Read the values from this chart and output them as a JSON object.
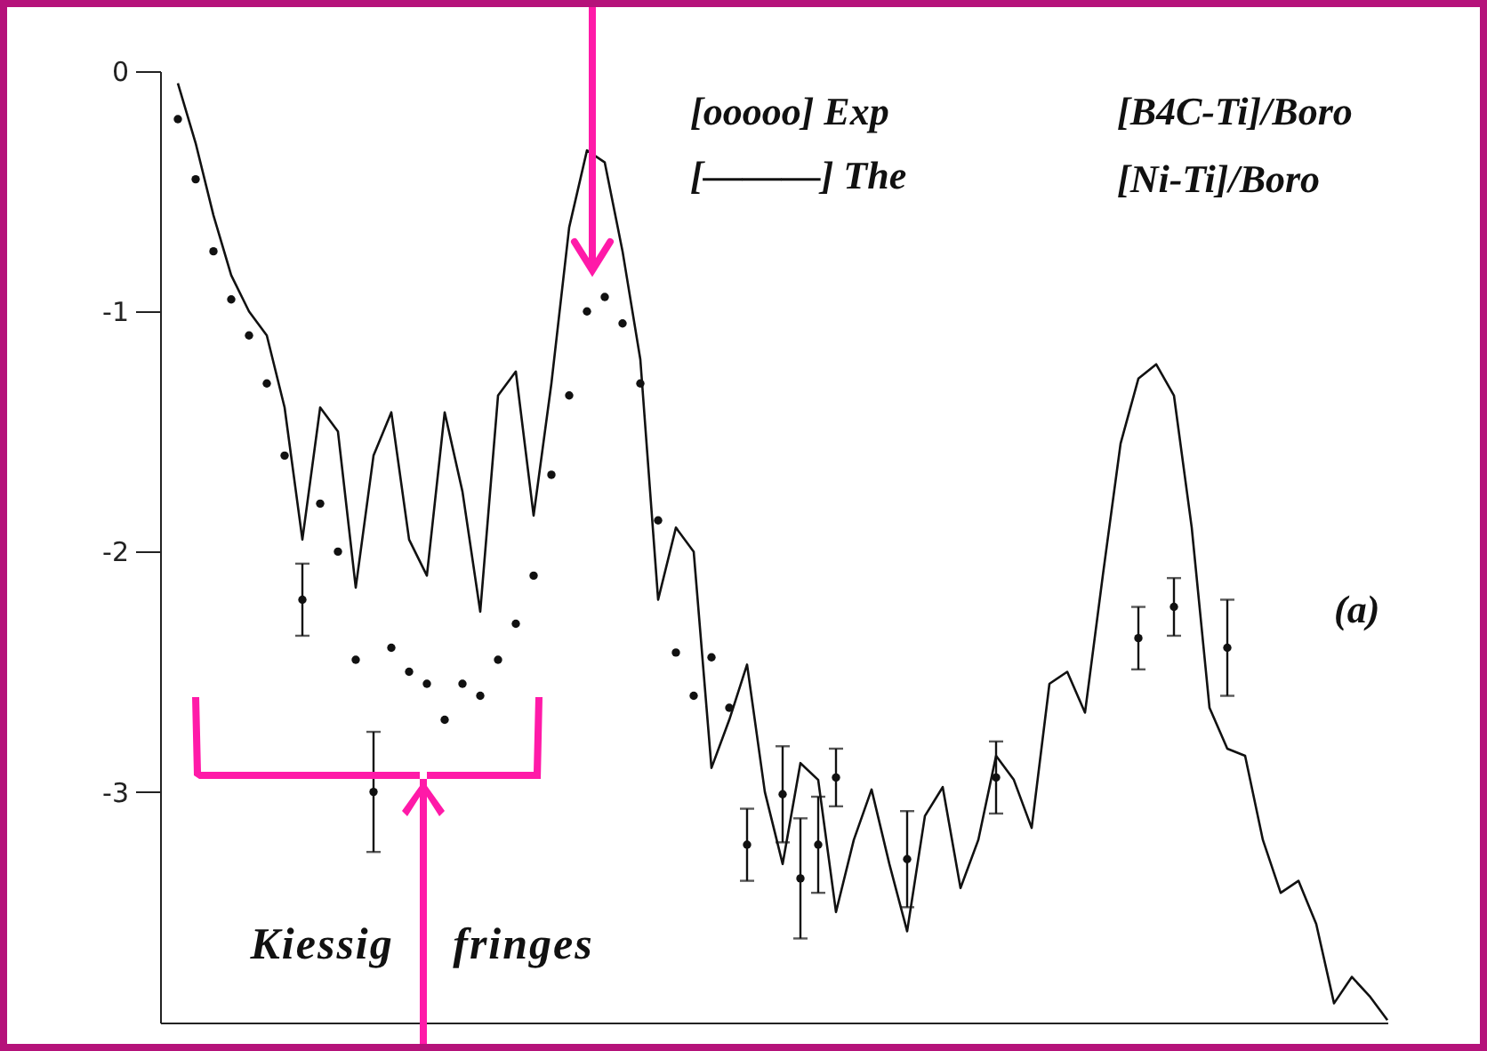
{
  "chart_data": {
    "type": "scatter",
    "categories": [
      null,
      null,
      null,
      null,
      null,
      null,
      null,
      null,
      null,
      null,
      null,
      null,
      null,
      null,
      null,
      null,
      null,
      null,
      null,
      null,
      null,
      null,
      null,
      null,
      null,
      null,
      null,
      null,
      null,
      null,
      null,
      null,
      null,
      null,
      null,
      null,
      null,
      null,
      null,
      null,
      null,
      null,
      null,
      null,
      null,
      null,
      null,
      null,
      null,
      null,
      null,
      null,
      null,
      null,
      null,
      null,
      null,
      null,
      null,
      null,
      null,
      null,
      null,
      null,
      null,
      null,
      null,
      null,
      null,
      null
    ],
    "series": [
      {
        "type": "line",
        "color": "#111111",
        "marker": "none",
        "values": [
          null,
          -0.05,
          -0.3,
          -0.6,
          -0.85,
          -1.0,
          -1.1,
          -1.4,
          -1.95,
          -1.4,
          -1.5,
          -2.15,
          -1.6,
          -1.42,
          -1.95,
          -2.1,
          -1.42,
          -1.75,
          -2.25,
          -1.35,
          -1.25,
          -1.85,
          -1.3,
          -0.65,
          -0.33,
          -0.38,
          -0.75,
          -1.2,
          -2.2,
          -1.9,
          -2.0,
          -2.9,
          -2.7,
          -2.47,
          -3.0,
          -3.3,
          -2.88,
          -2.95,
          -3.5,
          -3.2,
          -2.99,
          -3.3,
          -3.58,
          -3.1,
          -2.98,
          -3.4,
          -3.2,
          -2.85,
          -2.95,
          -3.15,
          -2.55,
          -2.5,
          -2.67,
          -2.1,
          -1.55,
          -1.28,
          -1.22,
          -1.35,
          -1.9,
          -2.65,
          -2.82,
          -2.85,
          -3.2,
          -3.42,
          -3.37,
          -3.55,
          -3.88,
          -3.77,
          -3.85,
          -3.95
        ]
      },
      {
        "color": "#111111",
        "marker": "circle",
        "values": [
          null,
          -0.2,
          -0.45,
          -0.75,
          -0.95,
          -1.1,
          -1.3,
          -1.6,
          -2.2,
          -1.8,
          -2.0,
          -2.45,
          -3.0,
          -2.4,
          -2.5,
          -2.55,
          -2.7,
          -2.55,
          -2.6,
          -2.45,
          -2.3,
          -2.1,
          -1.68,
          -1.35,
          -1.0,
          -0.94,
          -1.05,
          -1.3,
          -1.87,
          -2.42,
          -2.6,
          -2.44,
          -2.65,
          -3.22,
          null,
          -3.01,
          -3.36,
          -3.22,
          -2.94,
          null,
          null,
          null,
          -3.28,
          null,
          null,
          null,
          null,
          -2.94,
          null,
          null,
          null,
          null,
          null,
          null,
          null,
          -2.36,
          null,
          -2.23,
          null,
          null,
          -2.4,
          null,
          null,
          null,
          null,
          null,
          null,
          null,
          null,
          null
        ],
        "errors": [
          null,
          null,
          null,
          null,
          null,
          null,
          null,
          null,
          0.15,
          null,
          null,
          null,
          0.25,
          null,
          null,
          null,
          null,
          null,
          null,
          null,
          null,
          null,
          null,
          null,
          null,
          null,
          null,
          null,
          null,
          null,
          null,
          null,
          null,
          0.15,
          null,
          0.2,
          0.25,
          0.2,
          0.12,
          null,
          null,
          null,
          0.2,
          null,
          null,
          null,
          null,
          0.15,
          null,
          null,
          null,
          null,
          null,
          null,
          null,
          0.13,
          null,
          0.12,
          null,
          null,
          0.2,
          null,
          null,
          null,
          null,
          null,
          null,
          null,
          null,
          null
        ]
      }
    ],
    "ylim": [
      -3.96,
      0
    ],
    "yticks": [
      {
        "value": 0,
        "label": "0"
      },
      {
        "value": -1,
        "label": "-1"
      },
      {
        "value": -2,
        "label": "-2"
      },
      {
        "value": -3,
        "label": "-3"
      }
    ],
    "tick_labels": "y",
    "grid": false,
    "annotations": [
      "[ooooo] Exp",
      "[B4C-Ti]/Boro",
      "[———] The",
      "[Ni-Ti]/Boro",
      "(a)",
      "Kiessig fringes"
    ]
  }
}
